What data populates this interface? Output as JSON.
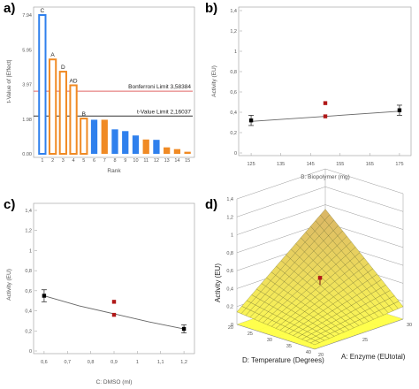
{
  "chart_data": [
    {
      "type": "bar",
      "panel_label": "a)",
      "ylabel": "t-Value of |Effect|",
      "xlabel": "Rank",
      "categories": [
        "1",
        "2",
        "3",
        "4",
        "5",
        "6",
        "7",
        "8",
        "9",
        "10",
        "11",
        "12",
        "13",
        "14",
        "15"
      ],
      "values": [
        7.94,
        5.4,
        4.7,
        3.92,
        2.02,
        1.95,
        1.95,
        1.4,
        1.3,
        1.05,
        0.82,
        0.8,
        0.37,
        0.27,
        0.12
      ],
      "bar_labels": [
        "C",
        "A",
        "D",
        "AD",
        "B",
        "",
        "",
        "",
        "",
        "",
        "",
        "",
        "",
        "",
        ""
      ],
      "bar_style": [
        "outline-blue",
        "outline-orange",
        "outline-orange",
        "outline-orange",
        "outline-orange",
        "blue",
        "orange",
        "blue",
        "blue",
        "blue",
        "orange",
        "blue",
        "orange",
        "orange",
        "orange"
      ],
      "yticks": [
        "0.00",
        "1.98",
        "3.97",
        "5.95",
        "7.94"
      ],
      "ylim": [
        0,
        7.94
      ],
      "limits": [
        {
          "label": "Bonferroni Limit 3,58384",
          "value": 3.58384,
          "color": "#e06666"
        },
        {
          "label": "t-Value Limit 2,16037",
          "value": 2.16037,
          "color": "#333333"
        }
      ],
      "colors": {
        "blue": "#2f80ed",
        "orange": "#f08a24"
      }
    },
    {
      "type": "scatter",
      "panel_label": "b)",
      "ylabel": "Activity (EU)",
      "xlabel": "B: Biopolymer (mg)",
      "xticks": [
        "125",
        "135",
        "145",
        "155",
        "165",
        "175"
      ],
      "yticks": [
        "0",
        "0,2",
        "0,4",
        "0,6",
        "0,8",
        "1",
        "1,2",
        "1,4"
      ],
      "xlim": [
        122,
        178
      ],
      "ylim": [
        0,
        1.4
      ],
      "line": [
        {
          "x": 125,
          "y": 0.31
        },
        {
          "x": 175,
          "y": 0.41
        }
      ],
      "points": [
        {
          "x": 125,
          "y": 0.32,
          "err": 0.05,
          "color": "black"
        },
        {
          "x": 150,
          "y": 0.49,
          "err": 0,
          "color": "red"
        },
        {
          "x": 150,
          "y": 0.36,
          "err": 0,
          "color": "red"
        },
        {
          "x": 175,
          "y": 0.42,
          "err": 0.05,
          "color": "black"
        }
      ]
    },
    {
      "type": "scatter",
      "panel_label": "c)",
      "ylabel": "Activity (EU)",
      "xlabel": "C: DMSO (ml)",
      "xticks": [
        "0,6",
        "0,7",
        "0,8",
        "0,9",
        "1",
        "1,1",
        "1,2"
      ],
      "yticks": [
        "0",
        "0,2",
        "0,4",
        "0,6",
        "0,8",
        "1",
        "1,2",
        "1,4"
      ],
      "xlim": [
        0.57,
        1.23
      ],
      "ylim": [
        0,
        1.4
      ],
      "curve": [
        {
          "x": 0.6,
          "y": 0.55
        },
        {
          "x": 0.75,
          "y": 0.45
        },
        {
          "x": 0.9,
          "y": 0.37
        },
        {
          "x": 1.05,
          "y": 0.29
        },
        {
          "x": 1.2,
          "y": 0.22
        }
      ],
      "points": [
        {
          "x": 0.6,
          "y": 0.55,
          "err": 0.06,
          "color": "black"
        },
        {
          "x": 0.9,
          "y": 0.49,
          "err": 0,
          "color": "red"
        },
        {
          "x": 0.9,
          "y": 0.36,
          "err": 0,
          "color": "red"
        },
        {
          "x": 1.2,
          "y": 0.22,
          "err": 0.04,
          "color": "black"
        }
      ]
    },
    {
      "type": "surface",
      "panel_label": "d)",
      "zlabel": "Activity (EU)",
      "xlabel": "A: Enzyme (EUtotal)",
      "ylabel": "D: Temperature (Degrees)",
      "zticks": [
        "0",
        "0,2",
        "0,4",
        "0,6",
        "0,8",
        "1",
        "1,2",
        "1,4"
      ],
      "xticks": [
        "20",
        "25",
        "30"
      ],
      "yticks": [
        "20",
        "25",
        "30",
        "35",
        "40"
      ],
      "colors": {
        "low": "#ffff55",
        "high": "#d9b466",
        "mesh": "#6b6b2a"
      }
    }
  ]
}
